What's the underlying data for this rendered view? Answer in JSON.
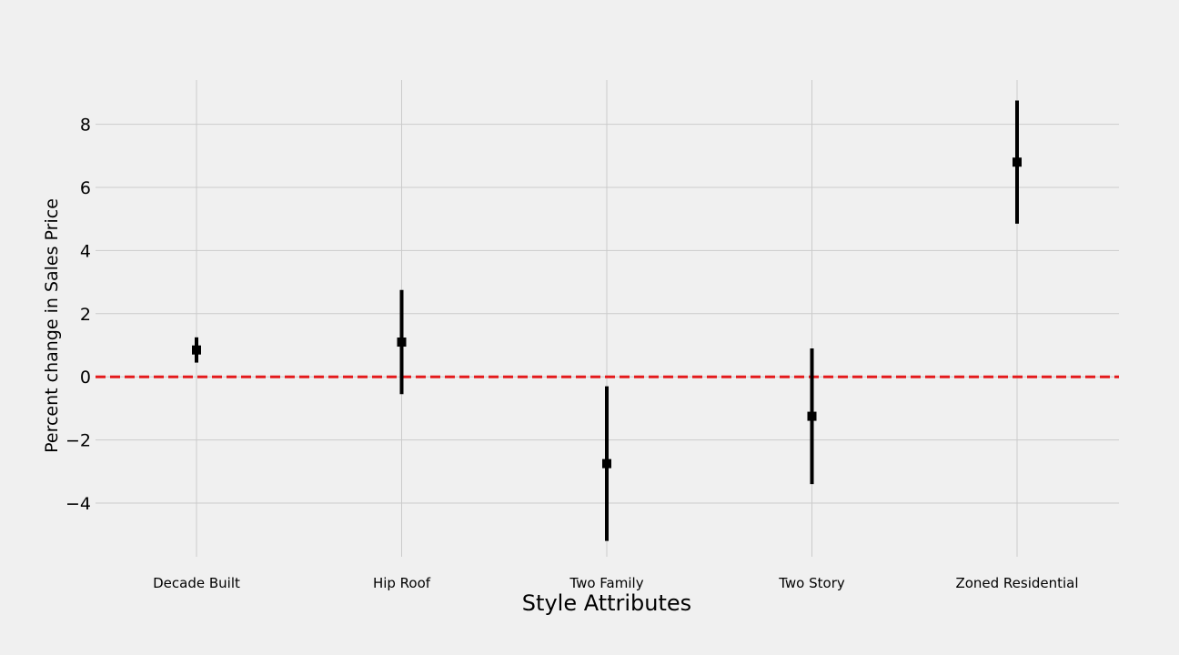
{
  "chart_data": {
    "type": "scatter",
    "title": "",
    "xlabel": "Style Attributes",
    "ylabel": "Percent change in Sales Price",
    "categories": [
      "Decade Built",
      "Hip Roof",
      "Two Family",
      "Two Story",
      "Zoned Residential"
    ],
    "series": [
      {
        "values": [
          0.85,
          1.1,
          -2.75,
          -1.25,
          6.8
        ],
        "error_low": [
          0.45,
          -0.55,
          -5.2,
          -3.4,
          4.85
        ],
        "error_high": [
          1.25,
          2.75,
          -0.3,
          0.9,
          8.75
        ]
      }
    ],
    "yticks": [
      "−4",
      "−2",
      "0",
      "2",
      "4",
      "6",
      "8"
    ],
    "ytick_values": [
      -4,
      -2,
      0,
      2,
      4,
      6,
      8
    ],
    "ylim": [
      -5.7,
      9.4
    ],
    "reference_line": {
      "y": 0,
      "color": "#e41a1c",
      "style": "dashed"
    },
    "grid": true,
    "colors": {
      "background": "#f0f0f0",
      "grid": "#cbcbcb",
      "marker": "#000000",
      "reference": "#e41a1c"
    }
  }
}
